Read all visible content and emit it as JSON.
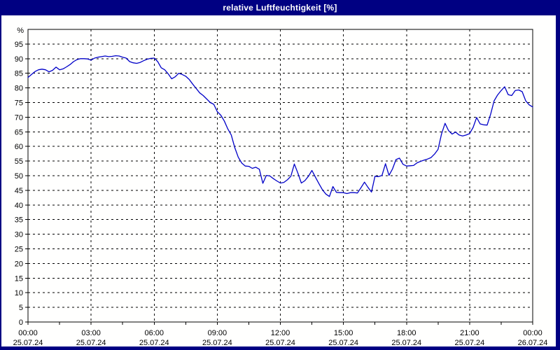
{
  "window": {
    "title": "relative Luftfeuchtigkeit [%]"
  },
  "colors": {
    "frame": "#000082",
    "title_text": "#FFFFFF",
    "panel_bg": "#FFFFFE",
    "plot_border": "#000000",
    "grid": "#000000",
    "tick": "#000000",
    "label_text": "#000000",
    "line": "#0000C8"
  },
  "chart_data": {
    "type": "line",
    "title": "relative Luftfeuchtigkeit [%]",
    "ylabel": "%",
    "xlabel": "",
    "ylim": [
      0,
      100
    ],
    "y_tick_step": 5,
    "y_unit_label": "%",
    "y_tick_labels": [
      "0",
      "5",
      "10",
      "15",
      "20",
      "25",
      "30",
      "35",
      "40",
      "45",
      "50",
      "55",
      "60",
      "65",
      "70",
      "75",
      "80",
      "85",
      "90",
      "95"
    ],
    "grid": "dashed",
    "legend_position": "none",
    "x_total_minutes": 1440,
    "x_grid_hours": [
      3,
      6,
      9,
      12,
      15,
      18,
      21
    ],
    "x_minor_tick_step_hours": 1.5,
    "x_ticks": [
      {
        "hour": 0,
        "time": "00:00",
        "date": "25.07.24"
      },
      {
        "hour": 3,
        "time": "03:00",
        "date": "25.07.24"
      },
      {
        "hour": 6,
        "time": "06:00",
        "date": "25.07.24"
      },
      {
        "hour": 9,
        "time": "09:00",
        "date": "25.07.24"
      },
      {
        "hour": 12,
        "time": "12:00",
        "date": "25.07.24"
      },
      {
        "hour": 15,
        "time": "15:00",
        "date": "25.07.24"
      },
      {
        "hour": 18,
        "time": "18:00",
        "date": "25.07.24"
      },
      {
        "hour": 21,
        "time": "21:00",
        "date": "25.07.24"
      },
      {
        "hour": 24,
        "time": "00:00",
        "date": "26.07.24"
      }
    ],
    "series": [
      {
        "name": "relative Luftfeuchtigkeit",
        "x_minutes": [
          0,
          10,
          20,
          30,
          40,
          50,
          60,
          70,
          80,
          90,
          100,
          110,
          120,
          130,
          140,
          150,
          160,
          170,
          180,
          190,
          200,
          210,
          220,
          230,
          240,
          250,
          260,
          270,
          280,
          290,
          300,
          310,
          320,
          330,
          340,
          350,
          360,
          370,
          380,
          390,
          400,
          410,
          420,
          430,
          440,
          450,
          460,
          470,
          480,
          490,
          500,
          510,
          520,
          530,
          540,
          550,
          560,
          570,
          580,
          590,
          600,
          610,
          620,
          630,
          640,
          650,
          660,
          670,
          680,
          690,
          700,
          710,
          720,
          730,
          740,
          750,
          760,
          770,
          780,
          790,
          800,
          810,
          820,
          830,
          840,
          850,
          860,
          870,
          880,
          890,
          900,
          910,
          920,
          930,
          940,
          950,
          960,
          970,
          980,
          990,
          1000,
          1010,
          1020,
          1030,
          1040,
          1050,
          1060,
          1070,
          1080,
          1090,
          1100,
          1110,
          1120,
          1130,
          1140,
          1150,
          1160,
          1170,
          1180,
          1190,
          1200,
          1210,
          1220,
          1230,
          1240,
          1250,
          1260,
          1270,
          1280,
          1290,
          1300,
          1310,
          1320,
          1330,
          1340,
          1350,
          1360,
          1370,
          1380,
          1390,
          1400,
          1410,
          1420,
          1430,
          1440
        ],
        "values": [
          83.6,
          84.6,
          85.6,
          86.2,
          86.4,
          86.2,
          85.5,
          86.0,
          87.1,
          86.2,
          86.5,
          87.2,
          88.0,
          89.0,
          89.7,
          90.0,
          90.0,
          89.9,
          89.5,
          90.2,
          90.5,
          90.7,
          90.9,
          90.7,
          90.8,
          91.0,
          90.9,
          90.5,
          90.2,
          89.0,
          88.6,
          88.4,
          88.7,
          89.3,
          89.8,
          90.1,
          90.2,
          89.0,
          86.9,
          86.2,
          84.8,
          83.1,
          83.8,
          85.0,
          84.6,
          84.0,
          82.9,
          81.3,
          79.8,
          78.3,
          77.4,
          76.2,
          75.0,
          74.4,
          71.9,
          70.7,
          68.7,
          66.0,
          63.9,
          59.6,
          56.3,
          54.3,
          53.3,
          53.2,
          52.5,
          52.9,
          52.2,
          47.4,
          50.1,
          49.9,
          49.0,
          48.2,
          47.5,
          47.7,
          48.6,
          49.8,
          54.0,
          50.9,
          47.5,
          48.3,
          49.8,
          51.8,
          49.5,
          47.3,
          45.2,
          43.7,
          42.9,
          46.3,
          44.3,
          44.2,
          44.2,
          43.9,
          44.2,
          44.2,
          44.1,
          45.9,
          47.8,
          46.0,
          44.4,
          49.8,
          49.7,
          50.1,
          54.1,
          50.1,
          52.3,
          55.5,
          56.0,
          53.9,
          53.3,
          53.4,
          53.5,
          54.4,
          54.9,
          55.3,
          55.7,
          56.2,
          57.4,
          59.0,
          64.3,
          67.9,
          65.4,
          64.2,
          64.9,
          63.9,
          63.6,
          63.9,
          64.4,
          66.5,
          69.9,
          67.7,
          67.4,
          67.3,
          71.0,
          75.6,
          77.6,
          79.1,
          80.4,
          77.7,
          77.4,
          79.1,
          79.3,
          78.7,
          75.6,
          74.2,
          73.5
        ]
      }
    ]
  }
}
